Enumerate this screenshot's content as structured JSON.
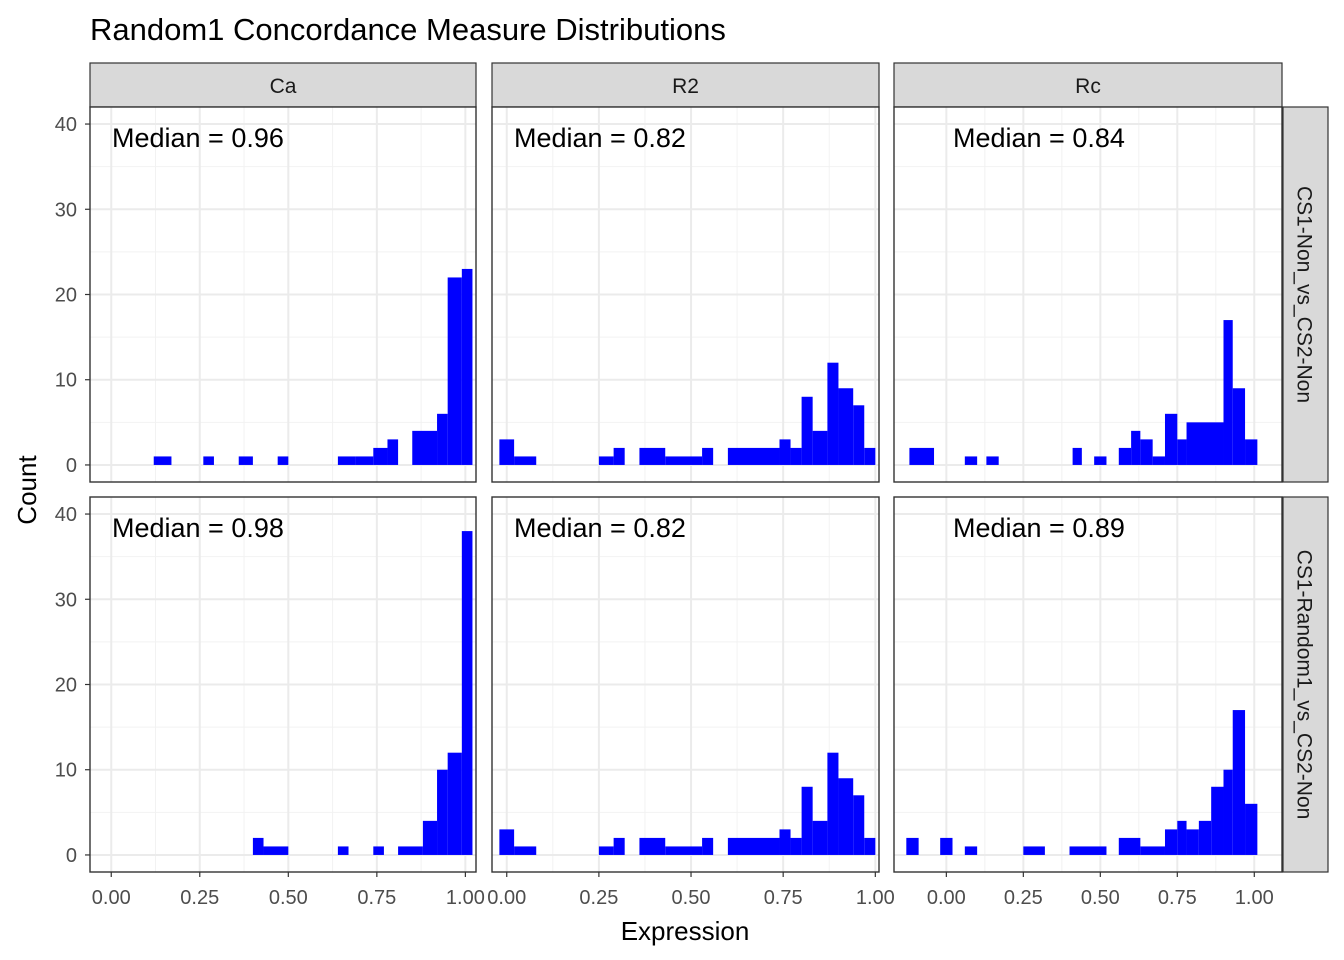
{
  "chart_data": {
    "type": "bar",
    "title": "Random1 Concordance Measure Distributions",
    "xlabel": "Expression",
    "ylabel": "Count",
    "bar_color": "#0000ff",
    "grid": true,
    "facet_cols": [
      "Ca",
      "R2",
      "Rc"
    ],
    "facet_rows": [
      "CS1-Non_vs_CS2-Non",
      "CS1-Random1_vs_CS2-Non"
    ],
    "ylim": [
      -2,
      42
    ],
    "y_ticks": [
      "0",
      "10",
      "20",
      "30",
      "40"
    ],
    "y_tick_values": [
      0,
      10,
      20,
      30,
      40
    ],
    "col_xlims": [
      [
        -0.06,
        1.03
      ],
      [
        -0.04,
        1.01
      ],
      [
        -0.17,
        1.09
      ]
    ],
    "x_ticks": [
      "0.00",
      "0.25",
      "0.50",
      "0.75",
      "1.00"
    ],
    "x_tick_values": [
      0,
      0.25,
      0.5,
      0.75,
      1
    ],
    "annotations": [
      [
        "Median = 0.96",
        "Median = 0.82",
        "Median = 0.84"
      ],
      [
        "Median = 0.98",
        "Median = 0.82",
        "Median = 0.89"
      ]
    ],
    "panels": [
      [
        {
          "bins": [
            [
              0.12,
              0.17,
              1
            ],
            [
              0.26,
              0.29,
              1
            ],
            [
              0.36,
              0.4,
              1
            ],
            [
              0.47,
              0.5,
              1
            ],
            [
              0.64,
              0.69,
              1
            ],
            [
              0.69,
              0.74,
              1
            ],
            [
              0.74,
              0.78,
              2
            ],
            [
              0.78,
              0.81,
              3
            ],
            [
              0.85,
              0.92,
              4
            ],
            [
              0.92,
              0.95,
              6
            ],
            [
              0.95,
              0.99,
              22
            ],
            [
              0.99,
              1.02,
              23
            ]
          ]
        },
        {
          "bins": [
            [
              -0.02,
              0.02,
              3
            ],
            [
              0.02,
              0.08,
              1
            ],
            [
              0.25,
              0.29,
              1
            ],
            [
              0.29,
              0.32,
              2
            ],
            [
              0.36,
              0.43,
              2
            ],
            [
              0.43,
              0.53,
              1
            ],
            [
              0.53,
              0.56,
              2
            ],
            [
              0.6,
              0.74,
              2
            ],
            [
              0.74,
              0.77,
              3
            ],
            [
              0.77,
              0.8,
              2
            ],
            [
              0.8,
              0.83,
              8
            ],
            [
              0.83,
              0.87,
              4
            ],
            [
              0.87,
              0.9,
              12
            ],
            [
              0.9,
              0.94,
              9
            ],
            [
              0.94,
              0.97,
              7
            ],
            [
              0.97,
              1.0,
              2
            ]
          ]
        },
        {
          "bins": [
            [
              -0.12,
              -0.04,
              2
            ],
            [
              0.06,
              0.1,
              1
            ],
            [
              0.13,
              0.17,
              1
            ],
            [
              0.41,
              0.44,
              2
            ],
            [
              0.48,
              0.52,
              1
            ],
            [
              0.56,
              0.6,
              2
            ],
            [
              0.6,
              0.63,
              4
            ],
            [
              0.63,
              0.67,
              3
            ],
            [
              0.67,
              0.71,
              1
            ],
            [
              0.71,
              0.75,
              6
            ],
            [
              0.75,
              0.78,
              3
            ],
            [
              0.78,
              0.9,
              5
            ],
            [
              0.9,
              0.93,
              17
            ],
            [
              0.93,
              0.97,
              9
            ],
            [
              0.97,
              1.01,
              3
            ]
          ]
        }
      ],
      [
        {
          "bins": [
            [
              0.4,
              0.43,
              2
            ],
            [
              0.43,
              0.5,
              1
            ],
            [
              0.64,
              0.67,
              1
            ],
            [
              0.74,
              0.77,
              1
            ],
            [
              0.81,
              0.88,
              1
            ],
            [
              0.88,
              0.92,
              4
            ],
            [
              0.92,
              0.95,
              10
            ],
            [
              0.95,
              0.99,
              12
            ],
            [
              0.99,
              1.02,
              38
            ]
          ]
        },
        {
          "bins": [
            [
              -0.02,
              0.02,
              3
            ],
            [
              0.02,
              0.08,
              1
            ],
            [
              0.25,
              0.29,
              1
            ],
            [
              0.29,
              0.32,
              2
            ],
            [
              0.36,
              0.43,
              2
            ],
            [
              0.43,
              0.53,
              1
            ],
            [
              0.53,
              0.56,
              2
            ],
            [
              0.6,
              0.74,
              2
            ],
            [
              0.74,
              0.77,
              3
            ],
            [
              0.77,
              0.8,
              2
            ],
            [
              0.8,
              0.83,
              8
            ],
            [
              0.83,
              0.87,
              4
            ],
            [
              0.87,
              0.9,
              12
            ],
            [
              0.9,
              0.94,
              9
            ],
            [
              0.94,
              0.97,
              7
            ],
            [
              0.97,
              1.0,
              2
            ]
          ]
        },
        {
          "bins": [
            [
              -0.13,
              -0.09,
              2
            ],
            [
              -0.02,
              0.02,
              2
            ],
            [
              0.06,
              0.1,
              1
            ],
            [
              0.25,
              0.32,
              1
            ],
            [
              0.4,
              0.52,
              1
            ],
            [
              0.56,
              0.63,
              2
            ],
            [
              0.63,
              0.71,
              1
            ],
            [
              0.71,
              0.75,
              3
            ],
            [
              0.75,
              0.78,
              4
            ],
            [
              0.78,
              0.82,
              3
            ],
            [
              0.82,
              0.86,
              4
            ],
            [
              0.86,
              0.9,
              8
            ],
            [
              0.9,
              0.93,
              10
            ],
            [
              0.93,
              0.97,
              17
            ],
            [
              0.97,
              1.01,
              6
            ]
          ]
        }
      ]
    ]
  }
}
